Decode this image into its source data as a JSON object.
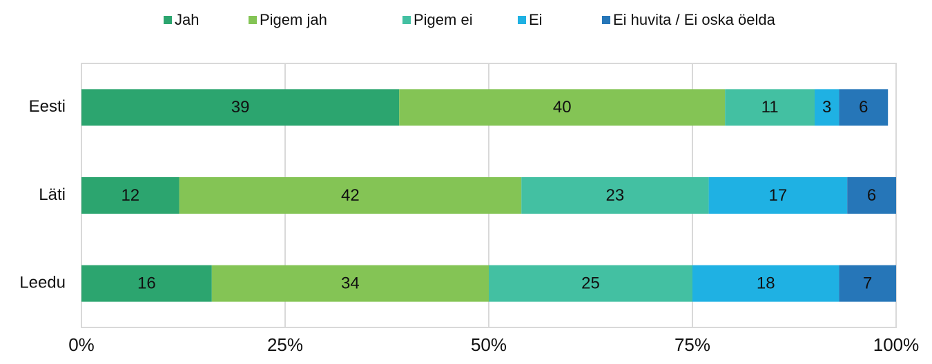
{
  "chart_data": {
    "type": "bar",
    "orientation": "horizontal",
    "stacked": true,
    "categories": [
      "Eesti",
      "Läti",
      "Leedu"
    ],
    "series": [
      {
        "name": "Jah",
        "color": "#2ca56f",
        "values": [
          39,
          12,
          16
        ]
      },
      {
        "name": "Pigem jah",
        "color": "#84c455",
        "values": [
          40,
          42,
          34
        ]
      },
      {
        "name": "Pigem ei",
        "color": "#43c0a2",
        "values": [
          11,
          23,
          25
        ]
      },
      {
        "name": "Ei",
        "color": "#1fb1e3",
        "values": [
          3,
          17,
          18
        ]
      },
      {
        "name": "Ei huvita / Ei oska öelda",
        "color": "#2676b8",
        "values": [
          6,
          6,
          7
        ]
      }
    ],
    "xlim": [
      0,
      100
    ],
    "xticks": [
      {
        "value": 0,
        "label": "0%"
      },
      {
        "value": 25,
        "label": "25%"
      },
      {
        "value": 50,
        "label": "50%"
      },
      {
        "value": 75,
        "label": "75%"
      },
      {
        "value": 100,
        "label": "100%"
      }
    ],
    "grid": true,
    "legend": "top",
    "data_labels": true
  }
}
